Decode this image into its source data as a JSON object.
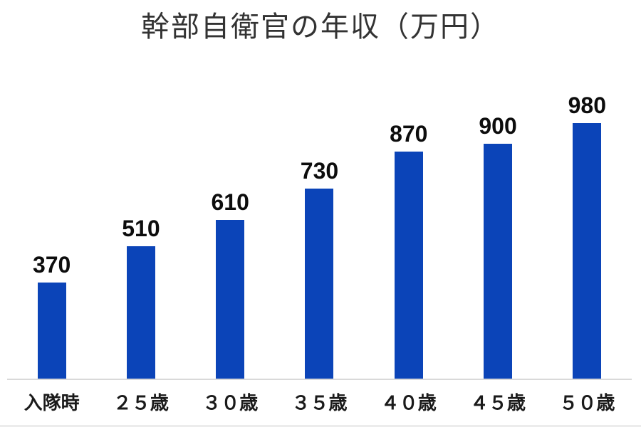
{
  "chart_data": {
    "type": "bar",
    "title": "幹部自衛官の年収（万円）",
    "categories": [
      "入隊時",
      "２５歳",
      "３０歳",
      "３５歳",
      "４０歳",
      "４５歳",
      "５０歳"
    ],
    "values": [
      370,
      510,
      610,
      730,
      870,
      900,
      980
    ],
    "xlabel": "",
    "ylabel": "",
    "ylim": [
      0,
      980
    ],
    "grid": false,
    "legend_position": "none",
    "bar_color": "#0b44b8",
    "axis_line_color": "#d9d9d9",
    "title_color": "#333333",
    "data_label_color": "#0d0d0d",
    "category_label_color": "#1a1a1a"
  }
}
